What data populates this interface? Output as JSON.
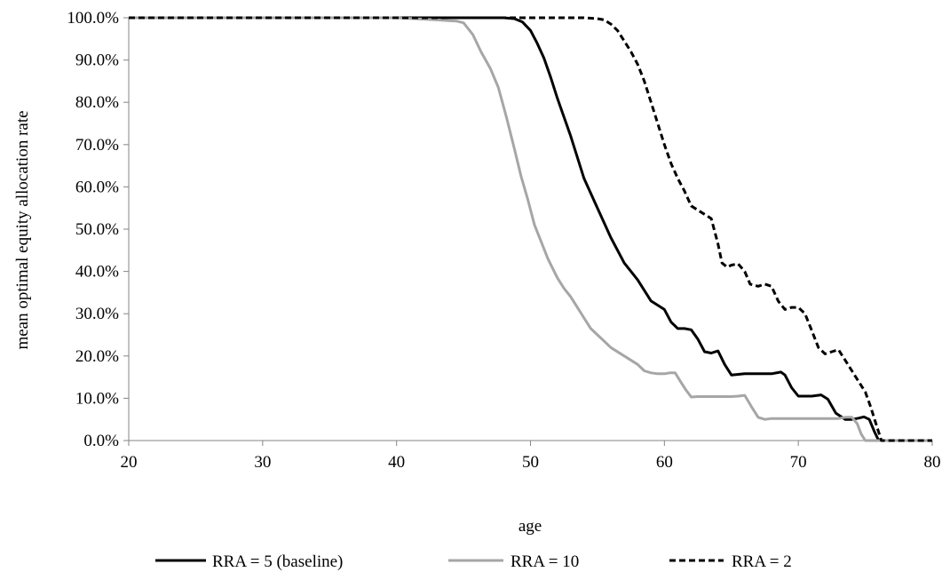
{
  "chart_data": {
    "type": "line",
    "title": "",
    "xlabel": "age",
    "ylabel": "mean optimal equity allocation rate",
    "xlim": [
      20,
      80
    ],
    "ylim": [
      0,
      100
    ],
    "x_ticks": [
      "20",
      "30",
      "40",
      "50",
      "60",
      "70",
      "80"
    ],
    "y_ticks": [
      "0.0%",
      "10.0%",
      "20.0%",
      "30.0%",
      "40.0%",
      "50.0%",
      "60.0%",
      "70.0%",
      "80.0%",
      "90.0%",
      "100.0%"
    ],
    "grid": false,
    "legend_position": "bottom",
    "series": [
      {
        "name": "RRA = 5 (baseline)",
        "color": "#000000",
        "style": "solid",
        "x": [
          20,
          45,
          48,
          48.8,
          49.4,
          50,
          50.5,
          51,
          51.5,
          52,
          53,
          54,
          55,
          56,
          57,
          58,
          59,
          60,
          60.5,
          61,
          61.5,
          62,
          62.5,
          63,
          63.5,
          64,
          64.5,
          65,
          66,
          67,
          68,
          68.7,
          69,
          69.5,
          70,
          70.5,
          71,
          71.7,
          72.2,
          72.8,
          73.5,
          74,
          74.5,
          74.9,
          75.3,
          75.7,
          76,
          76.2,
          80
        ],
        "y": [
          100,
          100,
          100,
          99.8,
          99,
          97,
          94,
          90.5,
          86,
          81,
          72,
          62,
          55,
          48,
          42,
          38,
          33,
          31,
          28,
          26.5,
          26.5,
          26.2,
          24,
          21,
          20.7,
          21.2,
          18,
          15.5,
          15.8,
          15.8,
          15.8,
          16.2,
          15.5,
          12.5,
          10.5,
          10.5,
          10.5,
          10.8,
          9.8,
          6.5,
          5,
          5,
          5.3,
          5.6,
          5,
          2,
          0,
          0,
          0
        ]
      },
      {
        "name": "RRA = 10",
        "color": "#a6a6a6",
        "style": "solid",
        "x": [
          20,
          40,
          43,
          44.5,
          45,
          45.7,
          46.3,
          47,
          47.6,
          48.2,
          48.8,
          49.3,
          49.8,
          50.3,
          50.8,
          51.3,
          52,
          52.5,
          53,
          53.5,
          54,
          54.5,
          55,
          55.5,
          56,
          57,
          58,
          58.5,
          59,
          59.5,
          60,
          60.4,
          60.8,
          61.2,
          61.6,
          62,
          62.5,
          63,
          64,
          65,
          65.5,
          66,
          66.5,
          67,
          67.5,
          68,
          69,
          70,
          71,
          72,
          73,
          73.5,
          74,
          74.4,
          74.7,
          75,
          75.2,
          80
        ],
        "y": [
          100,
          100,
          99.5,
          99.2,
          98.8,
          96,
          92,
          88,
          83.5,
          76.5,
          69,
          62.5,
          57,
          51,
          47,
          43,
          38.5,
          36,
          34,
          31.5,
          29,
          26.5,
          25,
          23.5,
          22,
          20,
          18,
          16.5,
          16,
          15.8,
          15.8,
          16,
          16,
          14,
          12,
          10.3,
          10.4,
          10.4,
          10.4,
          10.4,
          10.5,
          10.7,
          8,
          5.5,
          5,
          5.2,
          5.2,
          5.2,
          5.2,
          5.2,
          5.2,
          5.5,
          5.5,
          4,
          1.5,
          0,
          0,
          0
        ]
      },
      {
        "name": "RRA = 2",
        "color": "#000000",
        "style": "dashed",
        "x": [
          20,
          52,
          54,
          55,
          55.5,
          56,
          56.5,
          57,
          57.5,
          58,
          58.5,
          59,
          59.5,
          60,
          60.5,
          61,
          61.5,
          62,
          62.5,
          63,
          63.5,
          64,
          64.3,
          64.7,
          65,
          65.5,
          66,
          66.4,
          67,
          67.5,
          68,
          68.5,
          69,
          69.5,
          70,
          70.5,
          71,
          71.5,
          72,
          72.5,
          73,
          73.5,
          74,
          74.5,
          75,
          75.4,
          75.8,
          76.2,
          80
        ],
        "y": [
          100,
          100,
          100,
          99.8,
          99.5,
          98.5,
          97,
          94.5,
          92,
          89,
          85,
          80,
          75,
          70,
          65.5,
          62,
          59,
          55.5,
          54.5,
          53.5,
          52.5,
          46.5,
          42,
          41,
          41.5,
          41.8,
          40,
          37,
          36.5,
          37,
          36.5,
          33,
          31,
          31.5,
          31.5,
          30,
          26,
          22,
          20.5,
          21,
          21.5,
          19,
          16.5,
          14,
          11.5,
          8,
          4,
          0,
          0
        ]
      }
    ]
  }
}
